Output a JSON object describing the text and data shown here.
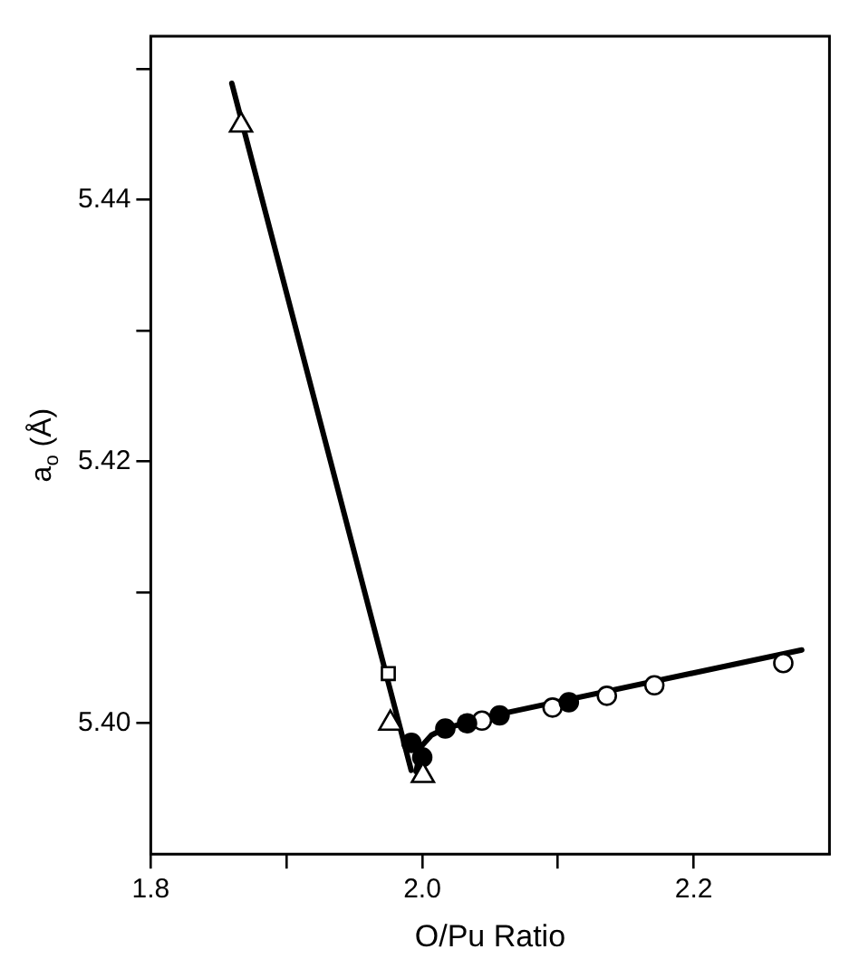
{
  "chart_data": {
    "type": "scatter",
    "xlabel": "O/Pu Ratio",
    "ylabel": "a$_{o}$ (Å)",
    "xlim": [
      1.8,
      2.3
    ],
    "xticks": [
      1.8,
      {
        "value": 1.9,
        "label": null
      },
      {
        "value": 2.0,
        "label": "2.0"
      },
      {
        "value": 2.1,
        "label": null
      },
      2.2
    ],
    "ylim": [
      5.39,
      5.4525
    ],
    "yticks": [
      {
        "value": 5.4,
        "label": "5.40"
      },
      {
        "value": 5.41,
        "label": null
      },
      {
        "value": 5.42,
        "label": "5.42"
      },
      {
        "value": 5.43,
        "label": null
      },
      {
        "value": 5.44,
        "label": "5.44"
      },
      {
        "value": 5.45,
        "label": null
      }
    ],
    "grid": false,
    "legend": false,
    "series": [
      {
        "type": "line",
        "marker": "none",
        "line_style": "solid",
        "color": "#000000",
        "x": [
          1.8597,
          1.9919
        ],
        "values": [
          5.4489,
          5.3964
        ]
      },
      {
        "type": "line",
        "marker": "none",
        "line_style": "solid",
        "color": "#000000",
        "x": [
          1.9955,
          1.999,
          2.0068,
          2.0167,
          2.057,
          2.2796
        ],
        "values": [
          5.3963,
          5.3982,
          5.3991,
          5.3996,
          5.4007,
          5.4056
        ]
      },
      {
        "type": "scatter",
        "marker": "triangle",
        "color": "#ffffff",
        "x": [
          1.8665,
          1.9765,
          2.0005
        ],
        "values": [
          5.4457,
          5.4,
          5.396
        ]
      },
      {
        "type": "scatter",
        "marker": "square",
        "color": "#ffffff",
        "x": [
          1.975
        ],
        "values": [
          5.4038
        ]
      },
      {
        "type": "scatter",
        "marker": "circle",
        "color": "#000000",
        "x": [
          1.992,
          2.0,
          2.017,
          2.033,
          2.057,
          2.108
        ],
        "values": [
          5.3985,
          5.3974,
          5.3996,
          5.4,
          5.4006,
          5.4016
        ]
      },
      {
        "type": "scatter",
        "marker": "circle",
        "color": "#ffffff",
        "x": [
          2.044,
          2.096,
          2.136,
          2.171,
          2.266
        ],
        "values": [
          5.4002,
          5.4012,
          5.4021,
          5.4029,
          5.4046
        ]
      }
    ]
  }
}
